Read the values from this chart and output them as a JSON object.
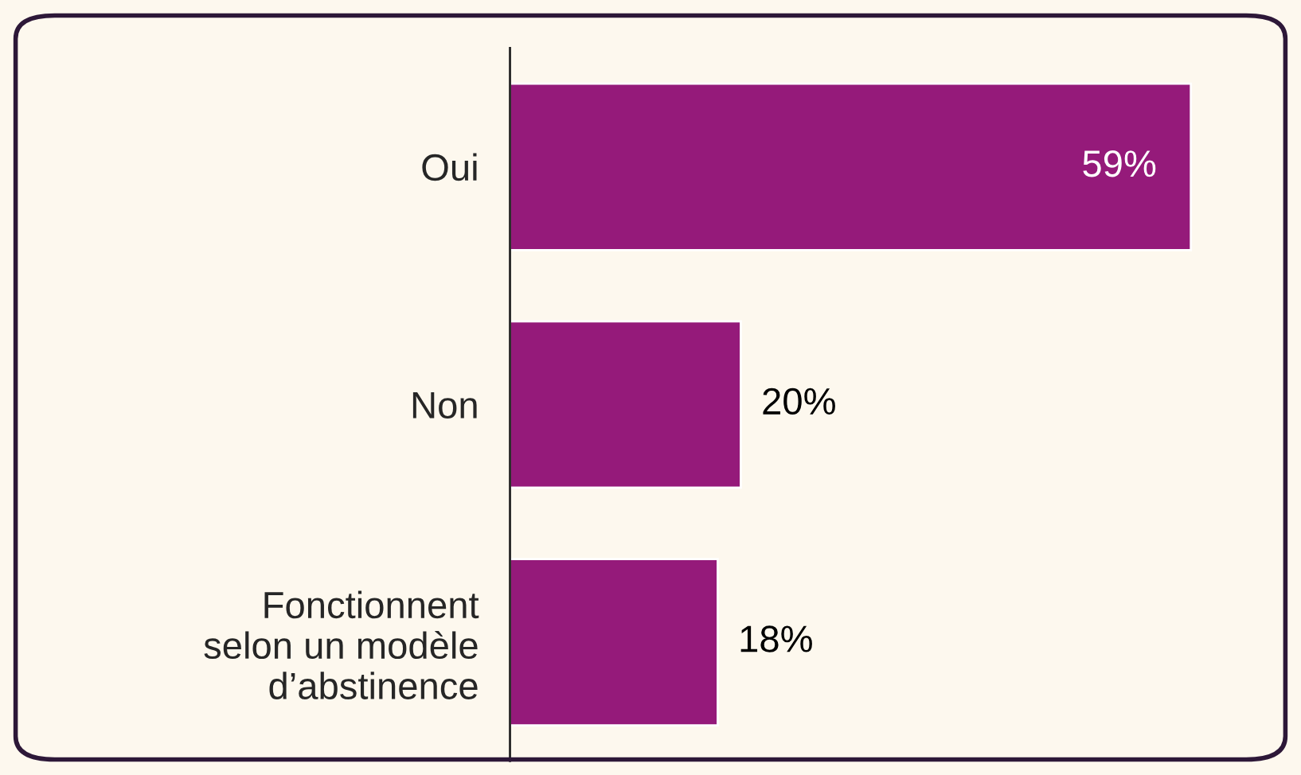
{
  "chart_data": {
    "type": "bar",
    "orientation": "horizontal",
    "categories": [
      "Oui",
      "Non",
      "Fonctionnent\nselon un modèle\nd’abstinence"
    ],
    "values": [
      59,
      20,
      18
    ],
    "value_labels": [
      "59%",
      "20%",
      "18%"
    ],
    "color": "#951a7a",
    "tick_labels": "y"
  }
}
